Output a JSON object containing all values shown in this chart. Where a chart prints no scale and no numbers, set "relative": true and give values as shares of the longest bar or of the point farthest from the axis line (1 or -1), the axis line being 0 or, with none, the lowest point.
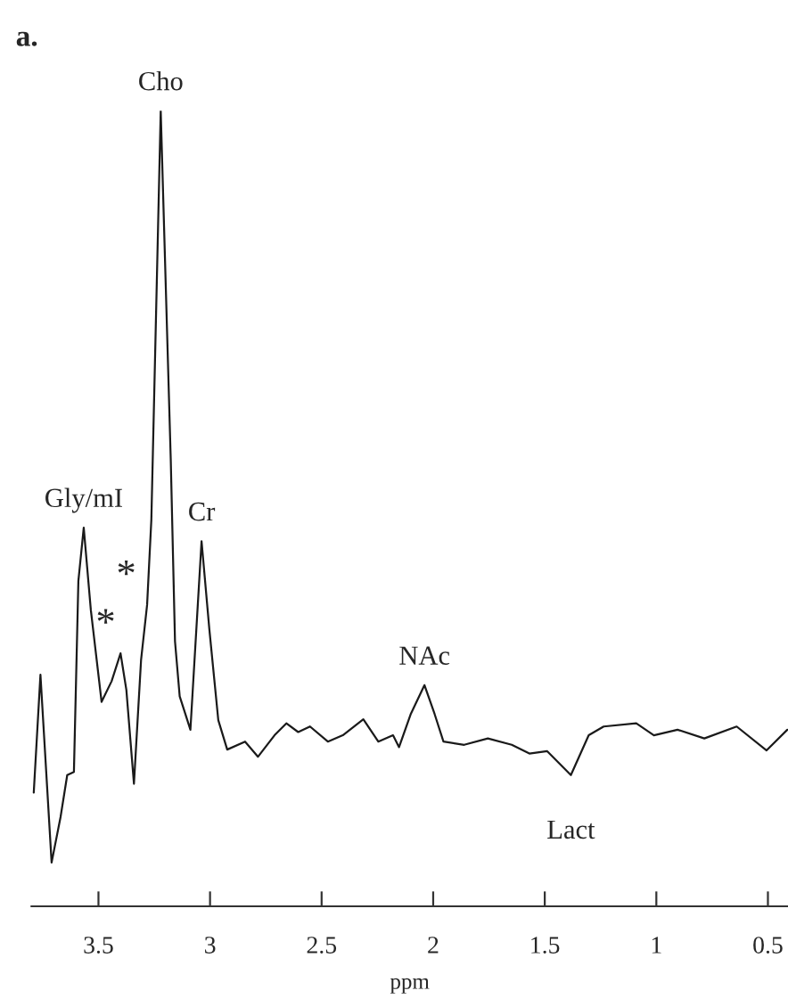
{
  "chart_data": {
    "type": "line",
    "title": "a.",
    "xlabel": "ppm",
    "relative": true,
    "color": "#1a1a1a",
    "grid": false,
    "x": [
      3.79,
      3.76,
      3.71,
      3.67,
      3.64,
      3.61,
      3.59,
      3.566,
      3.534,
      3.486,
      3.441,
      3.401,
      3.375,
      3.341,
      3.309,
      3.282,
      3.263,
      3.221,
      3.176,
      3.157,
      3.136,
      3.088,
      3.038,
      3.003,
      2.963,
      2.923,
      2.843,
      2.785,
      2.711,
      2.658,
      2.605,
      2.552,
      2.472,
      2.405,
      2.313,
      2.246,
      2.18,
      2.153,
      2.1,
      2.039,
      1.994,
      1.954,
      1.861,
      1.755,
      1.648,
      1.569,
      1.489,
      1.383,
      1.303,
      1.236,
      1.09,
      1.011,
      0.905,
      0.785,
      0.64,
      0.506,
      0.413
    ],
    "values": [
      0.143,
      0.291,
      0.055,
      0.112,
      0.165,
      0.169,
      0.409,
      0.476,
      0.372,
      0.257,
      0.283,
      0.318,
      0.272,
      0.154,
      0.31,
      0.379,
      0.486,
      1.0,
      0.561,
      0.333,
      0.264,
      0.222,
      0.459,
      0.348,
      0.234,
      0.197,
      0.207,
      0.188,
      0.215,
      0.23,
      0.219,
      0.226,
      0.207,
      0.215,
      0.235,
      0.207,
      0.215,
      0.2,
      0.242,
      0.278,
      0.242,
      0.207,
      0.203,
      0.211,
      0.203,
      0.192,
      0.195,
      0.165,
      0.215,
      0.226,
      0.23,
      0.215,
      0.222,
      0.211,
      0.226,
      0.196,
      0.222
    ],
    "xlim": [
      3.8,
      0.41
    ],
    "xticks": [
      {
        "value": 3.5,
        "label": "3.5"
      },
      3,
      {
        "value": 2.5,
        "label": "2.5"
      },
      2,
      {
        "value": 1.5,
        "label": "1.5"
      },
      1,
      {
        "value": 0.5,
        "label": "0.5"
      }
    ],
    "annotations": [
      {
        "text": "Cho",
        "x": 3.221,
        "y": 1.0
      },
      {
        "text": "Gly/mI",
        "x": 3.566,
        "y": 0.476
      },
      {
        "text": "*",
        "x": 3.401,
        "y": 0.318
      },
      {
        "text": "*",
        "x": 3.309,
        "y": 0.379
      },
      {
        "text": "Cr",
        "x": 3.038,
        "y": 0.459
      },
      {
        "text": "NAc",
        "x": 2.039,
        "y": 0.278
      },
      {
        "text": "Lact",
        "x": 1.383,
        "y": 0.165
      }
    ]
  }
}
